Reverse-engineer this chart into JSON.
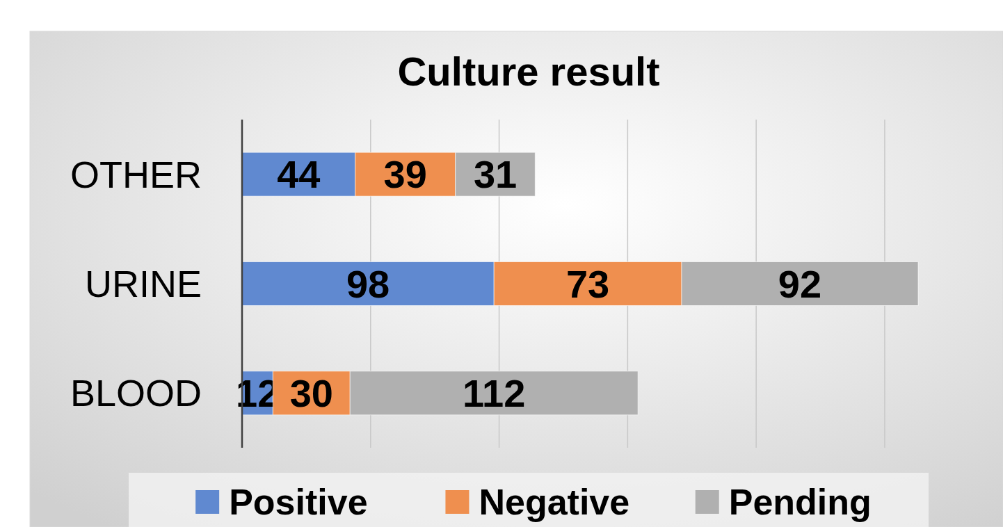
{
  "chart_data": {
    "type": "bar",
    "orientation": "horizontal",
    "stacked": true,
    "title": "Culture result",
    "categories": [
      "OTHER",
      "URINE",
      "BLOOD"
    ],
    "series": [
      {
        "name": "Positive",
        "color": "#6089d0",
        "values": [
          44,
          98,
          12
        ]
      },
      {
        "name": "Negative",
        "color": "#ef8f4f",
        "values": [
          39,
          73,
          30
        ]
      },
      {
        "name": "Pending",
        "color": "#b0b0b0",
        "values": [
          31,
          92,
          112
        ]
      }
    ],
    "xticks": [
      {
        "value": 0,
        "label": null
      },
      {
        "value": 50,
        "label": null
      },
      {
        "value": 100,
        "label": null
      },
      {
        "value": 150,
        "label": null
      },
      {
        "value": 200,
        "label": null
      },
      {
        "value": 250,
        "label": null
      }
    ],
    "tick_labels": "y",
    "grid": "x",
    "data_labels": true,
    "legend": "bottom"
  }
}
